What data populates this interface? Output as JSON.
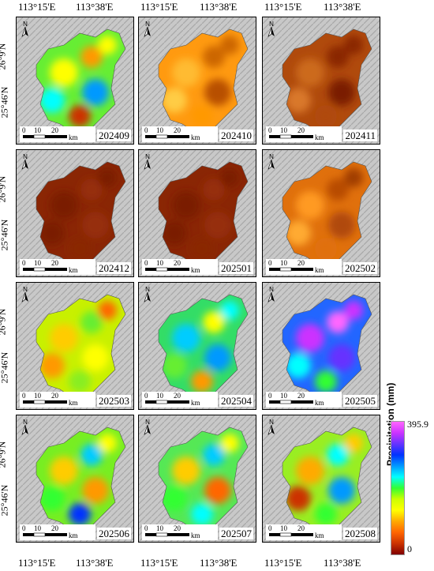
{
  "axis": {
    "lon_west": "113°15'E",
    "lon_east": "113°38'E",
    "lat_north": "26°9'N",
    "lat_south": "25°46'N"
  },
  "north_label": "N",
  "scale": {
    "ticks": [
      "0",
      "10",
      "20"
    ],
    "unit": "km"
  },
  "panels": [
    {
      "id": "202409",
      "base": "#66ee33"
    },
    {
      "id": "202410",
      "base": "#ff9a10"
    },
    {
      "id": "202411",
      "base": "#b04a0c"
    },
    {
      "id": "202412",
      "base": "#8a2604"
    },
    {
      "id": "202501",
      "base": "#8a2604"
    },
    {
      "id": "202502",
      "base": "#e0700c"
    },
    {
      "id": "202503",
      "base": "#c8f000"
    },
    {
      "id": "202504",
      "base": "#33dd66"
    },
    {
      "id": "202505",
      "base": "#2266ff"
    },
    {
      "id": "202506",
      "base": "#77ee22"
    },
    {
      "id": "202507",
      "base": "#55e855"
    },
    {
      "id": "202508",
      "base": "#99ee22"
    }
  ],
  "legend": {
    "title": "Precipitation (mm)",
    "max": "395.9",
    "min": "0",
    "colors": [
      "#ff66ff",
      "#cc33ff",
      "#6633ff",
      "#0033ff",
      "#0099ff",
      "#00ffff",
      "#33ff33",
      "#ccff00",
      "#ffff00",
      "#ffaa00",
      "#ff6600",
      "#cc3300",
      "#800000"
    ]
  }
}
